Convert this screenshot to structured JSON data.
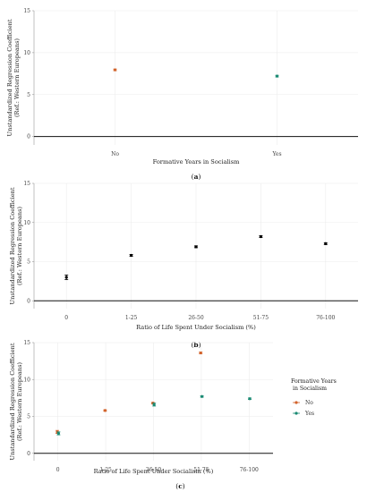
{
  "chart_data": [
    {
      "type": "scatter",
      "panel_label": "a",
      "categories": [
        "No",
        "Yes"
      ],
      "xlabel": "Formative Years in Socialism",
      "ylabel": "Unstandardized Regression Coefficient",
      "ylabel2": "(Ref.: Western Europeans)",
      "ylim": [
        -1,
        15
      ],
      "yticks": [
        0,
        5,
        10,
        15
      ],
      "grid": true,
      "series": [
        {
          "color": "#d2632b",
          "values": [
            7.95,
            null
          ],
          "err": [
            0.1,
            null
          ]
        },
        {
          "color": "#1a8a73",
          "values": [
            null,
            7.2
          ],
          "err": [
            null,
            0.1
          ]
        }
      ]
    },
    {
      "type": "scatter",
      "panel_label": "b",
      "categories": [
        "0",
        "1-25",
        "26-50",
        "51-75",
        "76-100"
      ],
      "xlabel": "Ratio of Life Spent Under Socialism (%)",
      "ylabel": "Unstandardized Regression Coefficient",
      "ylabel2": "(Ref.: Western Europeans)",
      "ylim": [
        -1,
        15
      ],
      "yticks": [
        0,
        5,
        10,
        15
      ],
      "grid": true,
      "series": [
        {
          "color": "#000000",
          "values": [
            3.0,
            5.8,
            6.9,
            8.2,
            7.3
          ],
          "err": [
            0.3,
            0.12,
            0.12,
            0.12,
            0.12
          ]
        }
      ]
    },
    {
      "type": "scatter",
      "panel_label": "c",
      "categories": [
        "0",
        "1-25",
        "26-50",
        "51-75",
        "76-100"
      ],
      "xlabel": "Ratio of Life Spent Under Socialism (%)",
      "ylabel": "Unstandardized Regression Coefficient",
      "ylabel2": "(Ref.: Western Europeans)",
      "ylim": [
        -1,
        15
      ],
      "yticks": [
        0,
        5,
        10,
        15
      ],
      "grid": true,
      "legend": {
        "title": "Formative Years",
        "title2": "in Socialism",
        "placement": "right"
      },
      "series": [
        {
          "name": "No",
          "color": "#d2632b",
          "values": [
            2.9,
            5.8,
            6.8,
            13.6,
            null
          ],
          "err": [
            0.2,
            0.1,
            0.1,
            0.12,
            null
          ]
        },
        {
          "name": "Yes",
          "color": "#1a8a73",
          "values": [
            2.7,
            null,
            6.6,
            7.7,
            7.4
          ],
          "err": [
            0.2,
            null,
            0.2,
            0.1,
            0.1
          ]
        }
      ]
    }
  ]
}
